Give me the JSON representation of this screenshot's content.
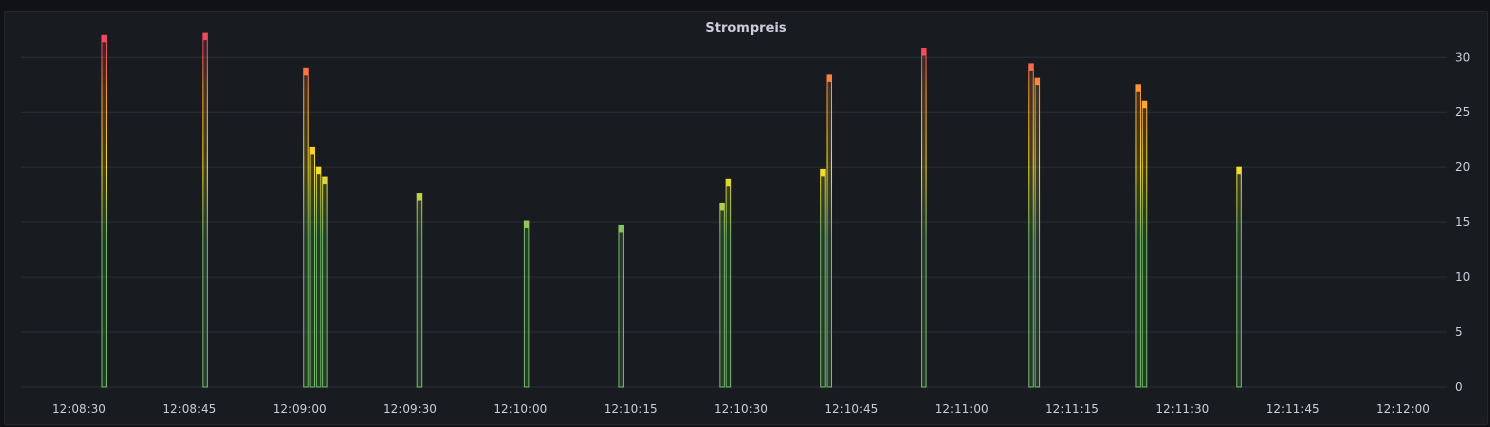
{
  "panel": {
    "title": "Strompreis"
  },
  "chart_data": {
    "type": "bar",
    "title": "Strompreis",
    "xlabel": "",
    "ylabel": "",
    "ylim": [
      0,
      32.3
    ],
    "grid": true,
    "x_ticks": [
      "12:08:30",
      "12:08:45",
      "12:09:00",
      "12:09:30",
      "12:10:00",
      "12:10:15",
      "12:10:30",
      "12:10:45",
      "12:11:00",
      "12:11:15",
      "12:11:30",
      "12:11:45",
      "12:12:00"
    ],
    "y_ticks": [
      "0",
      "5",
      "10",
      "15",
      "20",
      "25",
      "30"
    ],
    "y_tick_values": [
      0,
      5,
      10,
      15,
      20,
      25,
      30
    ],
    "color_thresholds": {
      "low": "#73bf69",
      "mid": "#fade2a",
      "high": "#ff9830",
      "very_high": "#f2495c"
    },
    "points": [
      {
        "t": "12:08:34",
        "value": 32.0
      },
      {
        "t": "12:08:50",
        "value": 32.2
      },
      {
        "t": "12:09:06",
        "value": 29.0
      },
      {
        "t": "12:09:07",
        "value": 21.8
      },
      {
        "t": "12:09:08",
        "value": 20.0
      },
      {
        "t": "12:09:09",
        "value": 19.1
      },
      {
        "t": "12:09:24",
        "value": 17.6
      },
      {
        "t": "12:09:41",
        "value": 15.1
      },
      {
        "t": "12:09:56",
        "value": 14.7
      },
      {
        "t": "12:10:12",
        "value": 16.7
      },
      {
        "t": "12:10:13",
        "value": 18.9
      },
      {
        "t": "12:10:28",
        "value": 19.8
      },
      {
        "t": "12:10:29",
        "value": 28.4
      },
      {
        "t": "12:10:44",
        "value": 30.8
      },
      {
        "t": "12:11:01",
        "value": 29.4
      },
      {
        "t": "12:11:02",
        "value": 28.1
      },
      {
        "t": "12:11:18",
        "value": 27.5
      },
      {
        "t": "12:11:19",
        "value": 26.0
      },
      {
        "t": "12:11:34",
        "value": 20.0
      }
    ]
  }
}
